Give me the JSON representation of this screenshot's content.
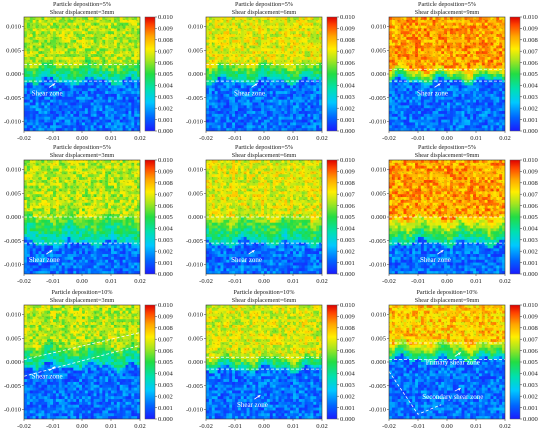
{
  "figure": {
    "background": "#ffffff"
  },
  "colorbar": {
    "ticks": [
      "0.010",
      "0.009",
      "0.008",
      "0.007",
      "0.006",
      "0.005",
      "0.004",
      "0.003",
      "0.002",
      "0.001",
      "0.000"
    ],
    "range": [
      0.0,
      0.01
    ],
    "colormap": [
      "#1a1aff",
      "#0066ff",
      "#00c8ff",
      "#00e0b0",
      "#22dd44",
      "#a8e61f",
      "#ffee00",
      "#ffa500",
      "#ff4400",
      "#dd0000"
    ]
  },
  "chart_data": [
    {
      "type": "heatmap",
      "title": "Particle deposition=5%",
      "subtitle": "Shear displacement=3mm",
      "x_ticks": [
        "-0.02",
        "-0.01",
        "0.00",
        "0.01",
        "0.02"
      ],
      "y_ticks": [
        "0.010",
        "0.005",
        "0.000",
        "-0.005",
        "-0.010"
      ],
      "xlim": [
        -0.02,
        0.02
      ],
      "ylim": [
        -0.012,
        0.012
      ],
      "colorbar_range": [
        0.0,
        0.01
      ],
      "upper_level": 0.0058,
      "shear_zone_top_y": 0.002,
      "shear_zone_bottom_y": -0.0015,
      "annotations": [
        {
          "text": "Shear zone",
          "x": -0.012,
          "y": -0.0045
        }
      ]
    },
    {
      "type": "heatmap",
      "title": "Particle deposition=5%",
      "subtitle": "Shear displacement=6mm",
      "x_ticks": [
        "-0.02",
        "-0.01",
        "0.00",
        "0.01",
        "0.02"
      ],
      "y_ticks": [
        "0.010",
        "0.005",
        "0.000",
        "-0.005",
        "-0.010"
      ],
      "xlim": [
        -0.02,
        0.02
      ],
      "ylim": [
        -0.012,
        0.012
      ],
      "colorbar_range": [
        0.0,
        0.01
      ],
      "upper_level": 0.0063,
      "shear_zone_top_y": 0.002,
      "shear_zone_bottom_y": -0.0015,
      "annotations": [
        {
          "text": "Shear zone",
          "x": -0.005,
          "y": -0.0045
        }
      ]
    },
    {
      "type": "heatmap",
      "title": "Particle deposition=5%",
      "subtitle": "Shear displacement=9mm",
      "x_ticks": [
        "-0.02",
        "-0.01",
        "0.00",
        "0.01",
        "0.02"
      ],
      "y_ticks": [
        "0.010",
        "0.005",
        "0.000",
        "-0.005",
        "-0.010"
      ],
      "xlim": [
        -0.02,
        0.02
      ],
      "ylim": [
        -0.012,
        0.012
      ],
      "colorbar_range": [
        0.0,
        0.01
      ],
      "upper_level": 0.0078,
      "shear_zone_top_y": 0.001,
      "shear_zone_bottom_y": -0.0015,
      "annotations": [
        {
          "text": "Shear zone",
          "x": -0.005,
          "y": -0.0045
        }
      ]
    },
    {
      "type": "heatmap",
      "title": "Particle deposition=5%",
      "subtitle": "Shear displacement=3mm",
      "x_ticks": [
        "-0.02",
        "-0.01",
        "0.00",
        "0.01",
        "0.02"
      ],
      "y_ticks": [
        "0.010",
        "0.005",
        "0.000",
        "-0.005",
        "-0.010"
      ],
      "xlim": [
        -0.02,
        0.02
      ],
      "ylim": [
        -0.012,
        0.012
      ],
      "colorbar_range": [
        0.0,
        0.01
      ],
      "upper_level": 0.0058,
      "shear_zone_top_y": 0.0,
      "shear_zone_bottom_y": -0.0055,
      "annotations": [
        {
          "text": "Shear zone",
          "x": -0.013,
          "y": -0.0095
        }
      ]
    },
    {
      "type": "heatmap",
      "title": "Particle deposition=5%",
      "subtitle": "Shear displacement=6mm",
      "x_ticks": [
        "-0.02",
        "-0.01",
        "0.00",
        "0.01",
        "0.02"
      ],
      "y_ticks": [
        "0.010",
        "0.005",
        "0.000",
        "-0.005",
        "-0.010"
      ],
      "xlim": [
        -0.02,
        0.02
      ],
      "ylim": [
        -0.012,
        0.012
      ],
      "colorbar_range": [
        0.0,
        0.01
      ],
      "upper_level": 0.0063,
      "shear_zone_top_y": 0.0,
      "shear_zone_bottom_y": -0.0055,
      "annotations": [
        {
          "text": "Shear zone",
          "x": -0.006,
          "y": -0.0095
        }
      ]
    },
    {
      "type": "heatmap",
      "title": "Particle deposition=5%",
      "subtitle": "Shear displacement=9mm",
      "x_ticks": [
        "-0.02",
        "-0.01",
        "0.00",
        "0.01",
        "0.02"
      ],
      "y_ticks": [
        "0.010",
        "0.005",
        "0.000",
        "-0.005",
        "-0.010"
      ],
      "xlim": [
        -0.02,
        0.02
      ],
      "ylim": [
        -0.012,
        0.012
      ],
      "colorbar_range": [
        0.0,
        0.01
      ],
      "upper_level": 0.0078,
      "shear_zone_top_y": 0.0,
      "shear_zone_bottom_y": -0.0055,
      "annotations": [
        {
          "text": "Shear zone",
          "x": -0.004,
          "y": -0.0095
        }
      ]
    },
    {
      "type": "heatmap",
      "title": "Particle deposition=10%",
      "subtitle": "Shear displacement=3mm",
      "x_ticks": [
        "-0.02",
        "-0.01",
        "0.00",
        "0.01",
        "0.02"
      ],
      "y_ticks": [
        "0.010",
        "0.005",
        "0.000",
        "-0.005",
        "-0.010"
      ],
      "xlim": [
        -0.02,
        0.02
      ],
      "ylim": [
        -0.012,
        0.012
      ],
      "colorbar_range": [
        0.0,
        0.01
      ],
      "upper_level": 0.0058,
      "shear_zone_top_y": 0.0035,
      "shear_zone_bottom_y": -0.001,
      "annotations": [
        {
          "text": "Shear zone",
          "x": -0.012,
          "y": -0.0035
        }
      ]
    },
    {
      "type": "heatmap",
      "title": "Particle deposition=10%",
      "subtitle": "Shear displacement=6mm",
      "x_ticks": [
        "-0.02",
        "-0.01",
        "0.00",
        "0.01",
        "0.02"
      ],
      "y_ticks": [
        "0.010",
        "0.005",
        "0.000",
        "-0.005",
        "-0.010"
      ],
      "xlim": [
        -0.02,
        0.02
      ],
      "ylim": [
        -0.012,
        0.012
      ],
      "colorbar_range": [
        0.0,
        0.01
      ],
      "upper_level": 0.0062,
      "shear_zone_top_y": 0.001,
      "shear_zone_bottom_y": -0.0015,
      "annotations": [
        {
          "text": "Shear zone",
          "x": -0.004,
          "y": -0.0095
        }
      ]
    },
    {
      "type": "heatmap",
      "title": "Particle deposition=10%",
      "subtitle": "Shear displacement=9mm",
      "x_ticks": [
        "-0.02",
        "-0.01",
        "0.00",
        "0.01",
        "0.02"
      ],
      "y_ticks": [
        "0.010",
        "0.005",
        "0.000",
        "-0.005",
        "-0.010"
      ],
      "xlim": [
        -0.02,
        0.02
      ],
      "ylim": [
        -0.012,
        0.012
      ],
      "colorbar_range": [
        0.0,
        0.01
      ],
      "upper_level": 0.0072,
      "shear_zone_top_y": 0.004,
      "shear_zone_bottom_y": 0.0005,
      "annotations": [
        {
          "text": "Primary shear zone",
          "x": 0.002,
          "y": -0.0005
        },
        {
          "text": "Secondary shear zone",
          "x": 0.002,
          "y": -0.0078
        }
      ]
    }
  ]
}
